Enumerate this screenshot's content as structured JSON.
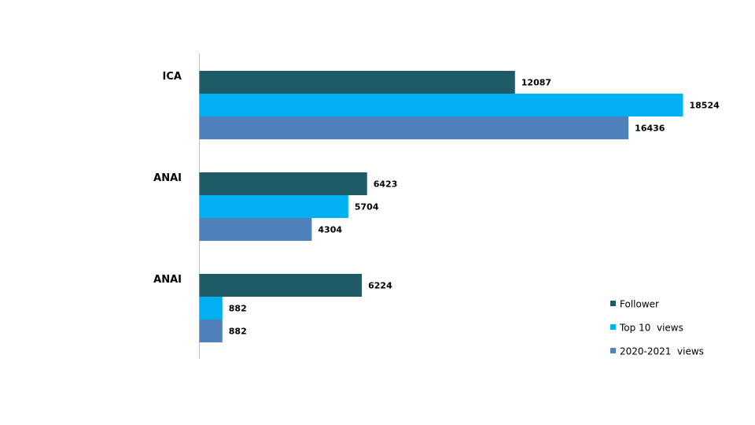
{
  "chart_data": {
    "type": "bar",
    "orientation": "horizontal",
    "title": "",
    "xlabel": "",
    "ylabel": "",
    "categories": [
      "ICA",
      "ANAI",
      "ANAI"
    ],
    "series": [
      {
        "name": "Follower",
        "color": "#1f5a67",
        "values": [
          12087,
          6423,
          6224
        ]
      },
      {
        "name": "Top 10  views",
        "color": "#00b0f0",
        "values": [
          18524,
          5704,
          882
        ]
      },
      {
        "name": "2020-2021  views",
        "color": "#4f81bd",
        "values": [
          16436,
          4304,
          882
        ]
      }
    ],
    "xlim": [
      0,
      20000
    ],
    "grid": false,
    "legend": "bottom-right"
  }
}
